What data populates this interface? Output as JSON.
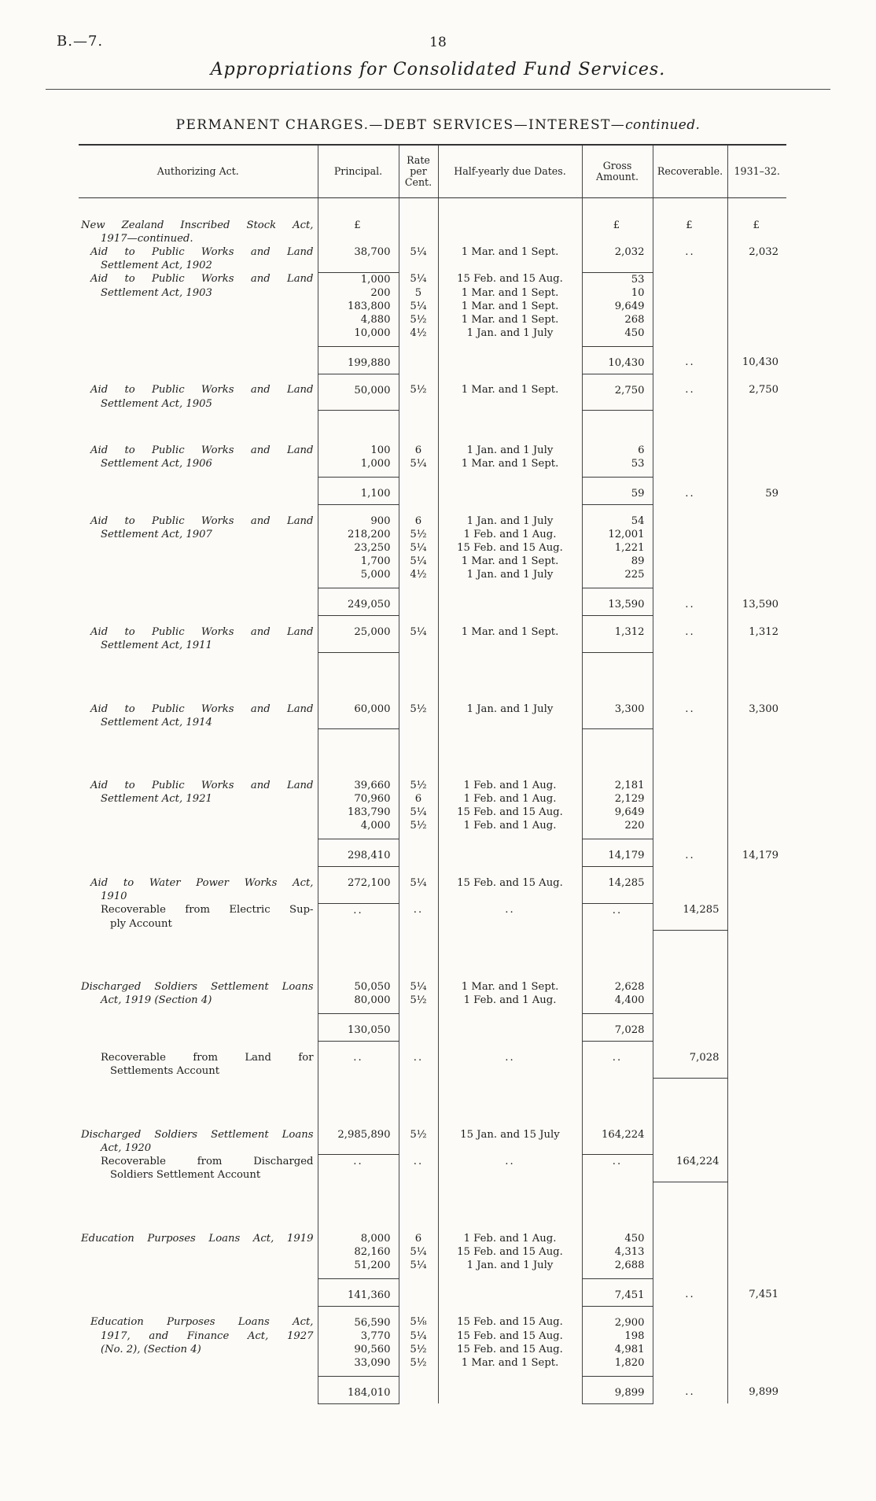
{
  "page": {
    "doc_ref": "B.—7.",
    "page_number": "18",
    "running_title": "Appropriations for Consolidated Fund Services.",
    "section_title": "PERMANENT CHARGES.—DEBT SERVICES—INTEREST—",
    "section_title_suffix": "continued."
  },
  "table": {
    "headers": {
      "act": "Authorizing Act.",
      "principal": "Principal.",
      "rate": "Rate per Cent.",
      "dates": "Half-yearly due Dates.",
      "gross": "Gross Amount.",
      "recoverable": "Recoverable.",
      "year": "1931–32."
    },
    "rows": [
      {
        "t": "g",
        "gs": "s"
      },
      {
        "act": "New Zealand Inscribed Stock Act,",
        "ind": 0,
        "j": 1,
        "p": "£",
        "g": "£",
        "rec": "£",
        "y": "£"
      },
      {
        "act": "1917—continued.",
        "ind": 2
      },
      {
        "act": "Aid to Public Works and Land",
        "ind": 1,
        "j": 1,
        "p": "38,700",
        "r": "5¼",
        "d": "1 Mar. and 1 Sept.",
        "g": "2,032",
        "rec": "..",
        "y": "2,032"
      },
      {
        "act": "Settlement Act, 1902",
        "ind": 2,
        "ru": [
          "p",
          "g"
        ]
      },
      {
        "act": "Aid to Public Works and Land",
        "ind": 1,
        "j": 1,
        "p": "1,000",
        "r": "5¼",
        "d": "15 Feb. and 15 Aug.",
        "g": "53"
      },
      {
        "act": "Settlement Act, 1903",
        "ind": 2,
        "p": "200",
        "r": "5",
        "d": "1 Mar. and 1 Sept.",
        "g": "10"
      },
      {
        "p": "183,800",
        "r": "5¼",
        "d": "1 Mar. and 1 Sept.",
        "g": "9,649"
      },
      {
        "p": "4,880",
        "r": "5½",
        "d": "1 Mar. and 1 Sept.",
        "g": "268"
      },
      {
        "p": "10,000",
        "r": "4½",
        "d": "1 Jan. and 1 July",
        "g": "450",
        "ru": [
          "p",
          "g"
        ],
        "pb": 1
      },
      {
        "t": "s",
        "p": "199,880",
        "g": "10,430",
        "rec": "..",
        "y": "10,430",
        "ru": [
          "p",
          "g"
        ]
      },
      {
        "act": "Aid to Public Works and Land",
        "ind": 1,
        "j": 1,
        "p": "50,000",
        "r": "5½",
        "d": "1 Mar. and 1 Sept.",
        "g": "2,750",
        "rec": "..",
        "y": "2,750",
        "pt": 1
      },
      {
        "act": "Settlement Act, 1905",
        "ind": 2,
        "ru": [
          "p",
          "g"
        ]
      },
      {
        "t": "g",
        "gs": "m"
      },
      {
        "act": "Aid to Public Works and Land",
        "ind": 1,
        "j": 1,
        "p": "100",
        "r": "6",
        "d": "1 Jan. and 1 July",
        "g": "6"
      },
      {
        "act": "Settlement Act, 1906",
        "ind": 2,
        "p": "1,000",
        "r": "5¼",
        "d": "1 Mar. and 1 Sept.",
        "g": "53",
        "ru": [
          "p",
          "g"
        ],
        "pb": 1
      },
      {
        "t": "s",
        "p": "1,100",
        "g": "59",
        "rec": "..",
        "y": "59",
        "ru": [
          "p",
          "g"
        ]
      },
      {
        "act": "Aid to Public Works and Land",
        "ind": 1,
        "j": 1,
        "p": "900",
        "r": "6",
        "d": "1 Jan. and 1 July",
        "g": "54",
        "pt": 1
      },
      {
        "act": "Settlement Act, 1907",
        "ind": 2,
        "p": "218,200",
        "r": "5½",
        "d": "1 Feb. and 1 Aug.",
        "g": "12,001"
      },
      {
        "p": "23,250",
        "r": "5¼",
        "d": "15 Feb. and 15 Aug.",
        "g": "1,221"
      },
      {
        "p": "1,700",
        "r": "5¼",
        "d": "1 Mar. and 1 Sept.",
        "g": "89"
      },
      {
        "p": "5,000",
        "r": "4½",
        "d": "1 Jan. and 1 July",
        "g": "225",
        "ru": [
          "p",
          "g"
        ],
        "pb": 1
      },
      {
        "t": "s",
        "p": "249,050",
        "g": "13,590",
        "rec": "..",
        "y": "13,590",
        "ru": [
          "p",
          "g"
        ]
      },
      {
        "act": "Aid to Public Works and Land",
        "ind": 1,
        "j": 1,
        "p": "25,000",
        "r": "5¼",
        "d": "1 Mar. and 1 Sept.",
        "g": "1,312",
        "rec": "..",
        "y": "1,312",
        "pt": 1
      },
      {
        "act": "Settlement Act, 1911",
        "ind": 2,
        "ru": [
          "p",
          "g"
        ]
      },
      {
        "t": "g",
        "gs": "l"
      },
      {
        "act": "Aid to Public Works and Land",
        "ind": 1,
        "j": 1,
        "p": "60,000",
        "r": "5½",
        "d": "1 Jan. and 1 July",
        "g": "3,300",
        "rec": "..",
        "y": "3,300"
      },
      {
        "act": "Settlement Act, 1914",
        "ind": 2,
        "ru": [
          "p",
          "g"
        ]
      },
      {
        "t": "g",
        "gs": "l"
      },
      {
        "act": "Aid to Public Works and Land",
        "ind": 1,
        "j": 1,
        "p": "39,660",
        "r": "5½",
        "d": "1 Feb. and 1 Aug.",
        "g": "2,181"
      },
      {
        "act": "Settlement Act, 1921",
        "ind": 2,
        "p": "70,960",
        "r": "6",
        "d": "1 Feb. and 1 Aug.",
        "g": "2,129"
      },
      {
        "p": "183,790",
        "r": "5¼",
        "d": "15 Feb. and 15 Aug.",
        "g": "9,649"
      },
      {
        "p": "4,000",
        "r": "5½",
        "d": "1 Feb. and 1 Aug.",
        "g": "220",
        "ru": [
          "p",
          "g"
        ],
        "pb": 1
      },
      {
        "t": "s",
        "p": "298,410",
        "g": "14,179",
        "rec": "..",
        "y": "14,179",
        "ru": [
          "p",
          "g"
        ]
      },
      {
        "act": "Aid to Water Power Works Act,",
        "ind": 1,
        "j": 1,
        "p": "272,100",
        "r": "5¼",
        "d": "15 Feb. and 15 Aug.",
        "g": "14,285",
        "pt": 1
      },
      {
        "act": "1910",
        "ind": 2,
        "ru": [
          "p",
          "g"
        ]
      },
      {
        "act": "Recoverable from Electric Sup-",
        "ind": 2,
        "rom": 1,
        "j": 1,
        "p": "..",
        "r": "..",
        "d": "..",
        "g": "..",
        "rec": "14,285"
      },
      {
        "act": "ply Account",
        "ind": 3,
        "rom": 1,
        "ru": [
          "rec"
        ]
      },
      {
        "t": "g",
        "gs": "l"
      },
      {
        "act": "Discharged Soldiers Settlement Loans",
        "ind": 0,
        "j": 1,
        "p": "50,050",
        "r": "5¼",
        "d": "1 Mar. and 1 Sept.",
        "g": "2,628"
      },
      {
        "act": "Act, 1919 (Section 4)",
        "ind": 2,
        "p": "80,000",
        "r": "5½",
        "d": "1 Feb. and 1 Aug.",
        "g": "4,400",
        "ru": [
          "p",
          "g"
        ],
        "pb": 1
      },
      {
        "t": "s",
        "p": "130,050",
        "g": "7,028",
        "ru": [
          "p",
          "g"
        ]
      },
      {
        "act": "Recoverable from Land for",
        "ind": 2,
        "rom": 1,
        "j": 1,
        "p": "..",
        "r": "..",
        "d": "..",
        "g": "..",
        "rec": "7,028",
        "pt": 1
      },
      {
        "act": "Settlements Account",
        "ind": 3,
        "rom": 1,
        "ru": [
          "rec"
        ]
      },
      {
        "t": "g",
        "gs": "l"
      },
      {
        "act": "Discharged Soldiers Settlement Loans",
        "ind": 0,
        "j": 1,
        "p": "2,985,890",
        "r": "5½",
        "d": "15 Jan. and 15 July",
        "g": "164,224"
      },
      {
        "act": "Act, 1920",
        "ind": 2,
        "ru": [
          "p",
          "g"
        ]
      },
      {
        "act": "Recoverable from Discharged",
        "ind": 2,
        "rom": 1,
        "j": 1,
        "p": "..",
        "r": "..",
        "d": "..",
        "g": "..",
        "rec": "164,224"
      },
      {
        "act": "Soldiers Settlement Account",
        "ind": 3,
        "rom": 1,
        "ru": [
          "rec"
        ]
      },
      {
        "t": "g",
        "gs": "l"
      },
      {
        "act": "Education Purposes Loans Act, 1919",
        "ind": 0,
        "j": 1,
        "p": "8,000",
        "r": "6",
        "d": "1 Feb. and 1 Aug.",
        "g": "450"
      },
      {
        "p": "82,160",
        "r": "5¼",
        "d": "15 Feb. and 15 Aug.",
        "g": "4,313"
      },
      {
        "p": "51,200",
        "r": "5¼",
        "d": "1 Jan. and 1 July",
        "g": "2,688",
        "ru": [
          "p",
          "g"
        ],
        "pb": 1
      },
      {
        "t": "s",
        "p": "141,360",
        "g": "7,451",
        "rec": "..",
        "y": "7,451",
        "ru": [
          "p",
          "g"
        ]
      },
      {
        "act": "Education Purposes Loans Act,",
        "ind": 1,
        "j": 1,
        "p": "56,590",
        "r": "5⅛",
        "d": "15 Feb. and 15 Aug.",
        "g": "2,900",
        "pt": 1
      },
      {
        "act": "1917, and Finance Act, 1927",
        "ind": 2,
        "j": 1,
        "p": "3,770",
        "r": "5¼",
        "d": "15 Feb. and 15 Aug.",
        "g": "198"
      },
      {
        "act": "(No. 2), (Section 4)",
        "ind": 2,
        "p": "90,560",
        "r": "5½",
        "d": "15 Feb. and  15 Aug.",
        "g": "4,981"
      },
      {
        "p": "33,090",
        "r": "5½",
        "d": "1 Mar. and  1 Sept.",
        "g": "1,820",
        "ru": [
          "p",
          "g"
        ],
        "pb": 1
      },
      {
        "t": "s",
        "p": "184,010",
        "g": "9,899",
        "rec": "..",
        "y": "9,899",
        "ru": [
          "p",
          "g"
        ]
      }
    ]
  }
}
